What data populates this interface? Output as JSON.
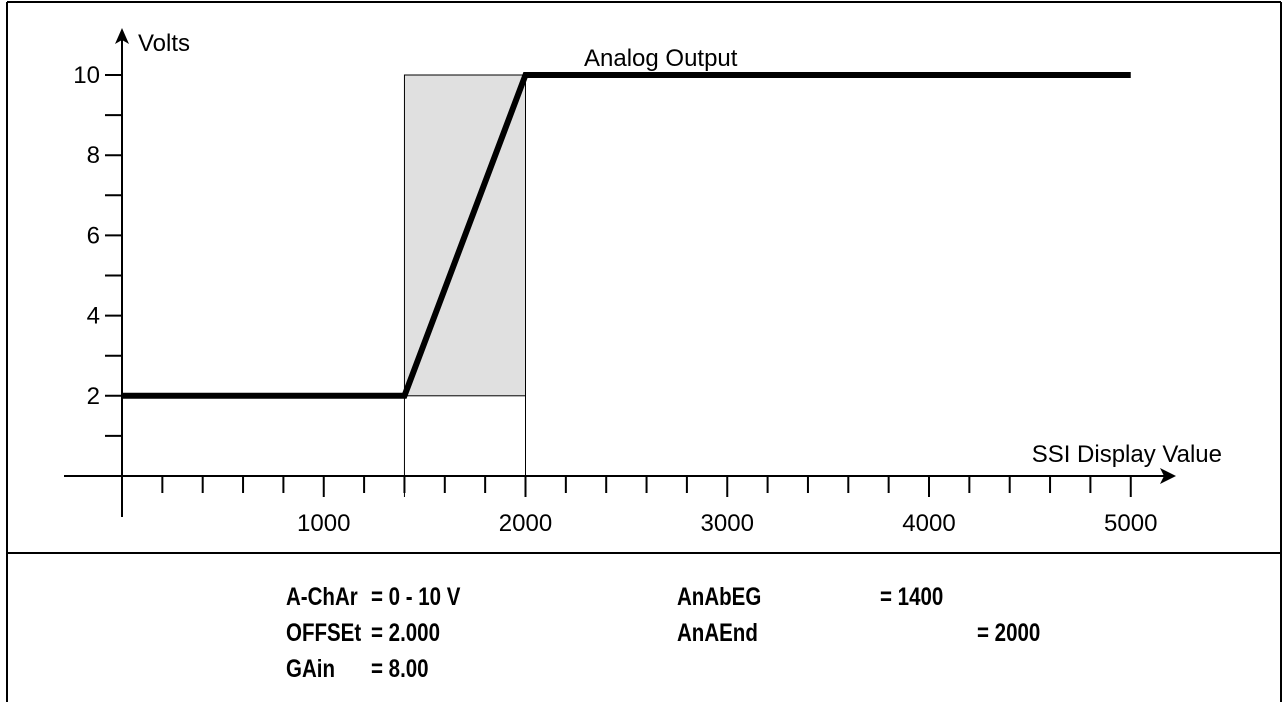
{
  "chart_data": {
    "type": "line",
    "ylabel": "Volts",
    "xlabel": "SSI Display Value",
    "series_label": "Analog Output",
    "x_ticks": [
      1000,
      2000,
      3000,
      4000,
      5000
    ],
    "y_ticks": [
      2,
      4,
      6,
      8,
      10
    ],
    "xlim": [
      0,
      5000
    ],
    "ylim": [
      0,
      10
    ],
    "x_minor_step": 200,
    "y_minor_step": 1,
    "series": [
      {
        "x": [
          0,
          1400,
          2000,
          5000
        ],
        "y": [
          2,
          2,
          10,
          10
        ]
      }
    ],
    "highlight_region": {
      "x": [
        1400,
        2000
      ],
      "y": [
        2,
        10
      ],
      "color": "#e0e0e0"
    },
    "line_color": "#000000"
  },
  "params": {
    "a_char_label": "A-ChAr",
    "a_char_value": "= 0 - 10 V",
    "offset_label": "OFFSEt",
    "offset_value": "= 2.000",
    "gain_label": "GAin",
    "gain_value": "= 8.00",
    "anabeg_label": "AnAbEG",
    "anabeg_value": "= 1400",
    "anaend_label": "AnAEnd",
    "anaend_value": "= 2000"
  }
}
